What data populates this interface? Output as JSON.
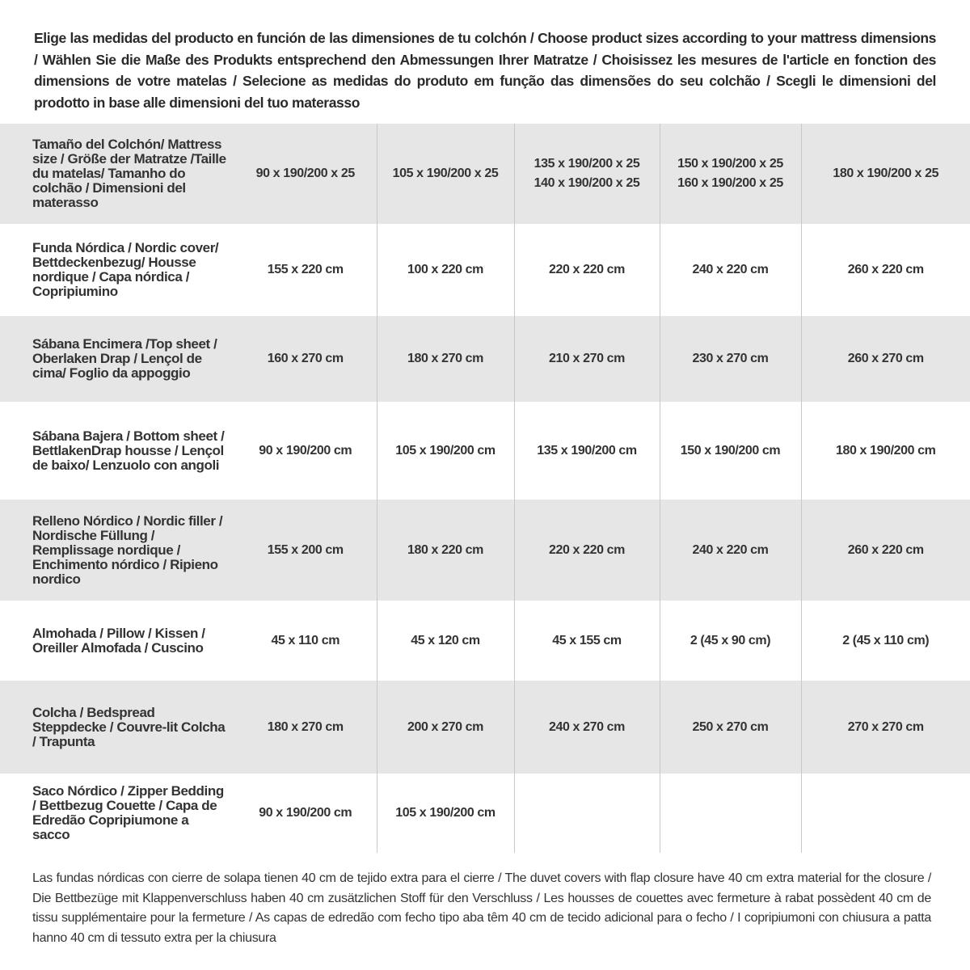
{
  "intro": "Elige las medidas del producto en función de las dimensiones de tu colchón / Choose product sizes according to your mattress dimensions / Wählen Sie die Maße des Produkts entsprechend den Abmessungen Ihrer Matratze / Choisissez les mesures de l'article en fonction des dimensions de votre matelas / Selecione as medidas do produto em função das dimensões do seu colchão / Scegli le dimensioni del prodotto in base alle dimensioni del tuo materasso",
  "table": {
    "header": {
      "label": "Tamaño del Colchón/ Mattress size / Größe der Matratze /Taille du matelas/ Tamanho do colchão / Dimensioni del materasso",
      "cells": [
        [
          "90 x 190/200 x 25"
        ],
        [
          "105 x 190/200 x 25"
        ],
        [
          "135 x 190/200 x 25",
          "140 x 190/200 x 25"
        ],
        [
          "150 x 190/200 x 25",
          "160 x 190/200 x 25"
        ],
        [
          "180 x 190/200 x 25"
        ]
      ]
    },
    "rows": [
      {
        "label": "Funda Nórdica / Nordic cover/ Bettdeckenbezug/ Housse nordique / Capa nórdica / Copripiumino",
        "cells": [
          "155 x 220 cm",
          "100 x 220 cm",
          "220 x 220 cm",
          "240 x 220 cm",
          "260 x 220 cm"
        ]
      },
      {
        "label": "Sábana Encimera /Top sheet / Oberlaken Drap / Lençol de cima/ Foglio da appoggio",
        "cells": [
          "160 x 270 cm",
          "180 x 270 cm",
          "210 x 270 cm",
          "230 x 270 cm",
          "260 x 270 cm"
        ]
      },
      {
        "label": "Sábana Bajera / Bottom sheet / BettlakenDrap housse / Lençol de baixo/ Lenzuolo con angoli",
        "cells": [
          "90 x 190/200 cm",
          "105 x 190/200 cm",
          "135 x 190/200 cm",
          "150 x 190/200 cm",
          "180 x 190/200 cm"
        ]
      },
      {
        "label": "Relleno Nórdico / Nordic filler / Nordische Füllung / Remplissage nordique / Enchimento nórdico / Ripieno nordico",
        "cells": [
          "155 x 200 cm",
          "180 x 220 cm",
          "220 x 220 cm",
          "240 x 220 cm",
          "260 x 220 cm"
        ]
      },
      {
        "label": "Almohada / Pillow / Kissen / Oreiller Almofada / Cuscino",
        "cells": [
          "45 x 110 cm",
          "45 x 120 cm",
          "45 x 155 cm",
          "2 (45 x 90 cm)",
          "2 (45 x 110 cm)"
        ]
      },
      {
        "label": "Colcha / Bedspread Steppdecke / Couvre-lit Colcha / Trapunta",
        "cells": [
          "180 x 270 cm",
          "200 x 270 cm",
          "240 x 270 cm",
          "250 x 270 cm",
          "270 x 270 cm"
        ]
      },
      {
        "label": "Saco Nórdico / Zipper Bedding / Bettbezug Couette / Capa de Edredão Copripiumone a sacco",
        "cells": [
          "90 x 190/200 cm",
          "105 x 190/200 cm"
        ]
      }
    ]
  },
  "footer": "Las fundas nórdicas con cierre de solapa tienen 40 cm de tejido extra para el cierre / The duvet covers with flap closure have 40 cm extra material for the closure / Die Bettbezüge mit Klappenverschluss haben 40 cm zusätzlichen Stoff für den Verschluss / Les housses de couettes avec fermeture à rabat possèdent 40 cm de tissu supplémentaire pour la fermeture / As capas de edredão com fecho tipo aba têm 40 cm de tecido adicional para o fecho / I copripiumoni con chiusura a patta hanno 40 cm di tessuto extra per la chiusura"
}
